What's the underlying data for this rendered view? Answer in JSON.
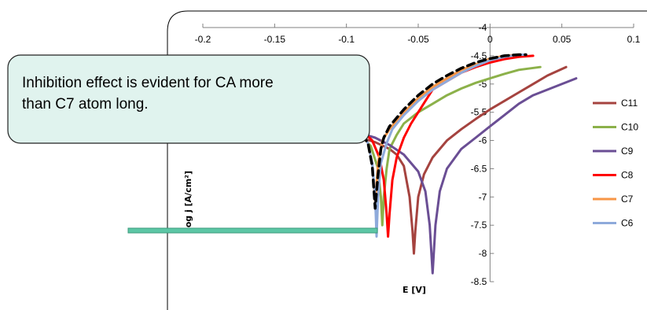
{
  "chart_data": {
    "type": "line",
    "title": "",
    "xlabel": "E [V]",
    "ylabel": "log j [A/cm²]",
    "xlim": [
      -0.2,
      0.1
    ],
    "ylim": [
      -8.5,
      -4
    ],
    "xticks": [
      "-0.2",
      "-0.15",
      "-0.1",
      "-0.05",
      "0",
      "0.05",
      "0.1"
    ],
    "yticks": [
      "-4",
      "-4.5",
      "-5",
      "-5.5",
      "-6",
      "-6.5",
      "-7",
      "-7.5",
      "-8",
      "-8.5"
    ],
    "grid": false,
    "legend_position": "right",
    "series": [
      {
        "name": "C11",
        "color": "#a5433f",
        "x": [
          -0.12,
          -0.1,
          -0.09,
          -0.08,
          -0.07,
          -0.065,
          -0.06,
          -0.056,
          -0.054,
          -0.053,
          -0.052,
          -0.05,
          -0.046,
          -0.04,
          -0.03,
          -0.02,
          -0.01,
          0,
          0.01,
          0.02,
          0.03,
          0.04,
          0.053
        ],
        "y": [
          -5.75,
          -5.88,
          -5.95,
          -6.03,
          -6.15,
          -6.25,
          -6.45,
          -7.0,
          -7.6,
          -8.0,
          -7.6,
          -7.0,
          -6.6,
          -6.3,
          -6.0,
          -5.8,
          -5.62,
          -5.45,
          -5.3,
          -5.15,
          -5.0,
          -4.85,
          -4.7
        ]
      },
      {
        "name": "C10",
        "color": "#8cb14a",
        "x": [
          -0.11,
          -0.1,
          -0.09,
          -0.083,
          -0.078,
          -0.076,
          -0.075,
          -0.074,
          -0.072,
          -0.07,
          -0.065,
          -0.06,
          -0.05,
          -0.04,
          -0.03,
          -0.02,
          -0.01,
          0,
          0.01,
          0.02,
          0.035
        ],
        "y": [
          -5.6,
          -5.72,
          -5.9,
          -6.1,
          -6.5,
          -7.0,
          -7.5,
          -7.0,
          -6.5,
          -6.15,
          -5.9,
          -5.7,
          -5.5,
          -5.35,
          -5.2,
          -5.08,
          -4.98,
          -4.9,
          -4.82,
          -4.75,
          -4.7
        ]
      },
      {
        "name": "C9",
        "color": "#6a4e94",
        "x": [
          -0.13,
          -0.12,
          -0.1,
          -0.08,
          -0.07,
          -0.06,
          -0.05,
          -0.045,
          -0.042,
          -0.04,
          -0.038,
          -0.035,
          -0.03,
          -0.02,
          -0.01,
          0,
          0.01,
          0.02,
          0.03,
          0.045,
          0.06
        ],
        "y": [
          -5.65,
          -5.7,
          -5.8,
          -5.95,
          -6.08,
          -6.25,
          -6.55,
          -6.9,
          -7.5,
          -8.35,
          -7.5,
          -6.9,
          -6.5,
          -6.15,
          -5.95,
          -5.75,
          -5.55,
          -5.35,
          -5.2,
          -5.05,
          -4.9
        ]
      },
      {
        "name": "C8",
        "color": "#ff0000",
        "x": [
          -0.11,
          -0.1,
          -0.09,
          -0.082,
          -0.077,
          -0.074,
          -0.072,
          -0.071,
          -0.07,
          -0.068,
          -0.065,
          -0.06,
          -0.055,
          -0.05,
          -0.045,
          -0.04,
          -0.03,
          -0.02,
          -0.01,
          0,
          0.01,
          0.02,
          0.03
        ],
        "y": [
          -5.55,
          -5.65,
          -5.8,
          -6.0,
          -6.3,
          -6.7,
          -7.3,
          -7.7,
          -7.3,
          -6.7,
          -6.3,
          -5.95,
          -5.7,
          -5.5,
          -5.3,
          -5.1,
          -4.95,
          -4.8,
          -4.7,
          -4.62,
          -4.56,
          -4.52,
          -4.5
        ]
      },
      {
        "name": "C7",
        "color": "#f79646",
        "x": [
          -0.11,
          -0.1,
          -0.09,
          -0.085,
          -0.082,
          -0.08,
          -0.078,
          -0.075,
          -0.07,
          -0.065,
          -0.06,
          -0.05,
          -0.04,
          -0.03,
          -0.02,
          -0.01,
          0,
          0.01,
          0.02,
          0.025
        ],
        "y": [
          -5.6,
          -5.7,
          -5.85,
          -6.05,
          -6.4,
          -7.1,
          -6.4,
          -6.0,
          -5.8,
          -5.65,
          -5.5,
          -5.25,
          -5.05,
          -4.9,
          -4.75,
          -4.65,
          -4.55,
          -4.5,
          -4.48,
          -4.48
        ]
      },
      {
        "name": "C6",
        "color": "#8eaadb",
        "x": [
          -0.11,
          -0.1,
          -0.09,
          -0.085,
          -0.082,
          -0.08,
          -0.079,
          -0.078,
          -0.076,
          -0.072,
          -0.068,
          -0.06,
          -0.05,
          -0.04,
          -0.03,
          -0.02,
          -0.01,
          0,
          0.01,
          0.02,
          0.025
        ],
        "y": [
          -5.6,
          -5.72,
          -5.85,
          -6.05,
          -6.4,
          -7.0,
          -7.7,
          -7.0,
          -6.4,
          -6.05,
          -5.8,
          -5.55,
          -5.3,
          -5.1,
          -4.95,
          -4.8,
          -4.68,
          -4.58,
          -4.52,
          -4.48,
          -4.48
        ]
      },
      {
        "name": "",
        "color": "#000000",
        "dashed": true,
        "x": [
          -0.11,
          -0.1,
          -0.09,
          -0.085,
          -0.082,
          -0.08,
          -0.078,
          -0.076,
          -0.074,
          -0.07,
          -0.065,
          -0.06,
          -0.05,
          -0.04,
          -0.03,
          -0.02,
          -0.01,
          0,
          0.01,
          0.02,
          0.025
        ],
        "y": [
          -5.6,
          -5.7,
          -5.85,
          -6.05,
          -6.45,
          -7.2,
          -6.6,
          -6.15,
          -5.95,
          -5.75,
          -5.6,
          -5.45,
          -5.2,
          -5.0,
          -4.85,
          -4.72,
          -4.62,
          -4.55,
          -4.5,
          -4.48,
          -4.48
        ]
      }
    ]
  },
  "callout": {
    "line1": "Inhibition effect is evident for CA more",
    "line2": "than C7 atom long.",
    "fill": "#e0f3ee",
    "pointer_color": "#5cc6a5"
  }
}
